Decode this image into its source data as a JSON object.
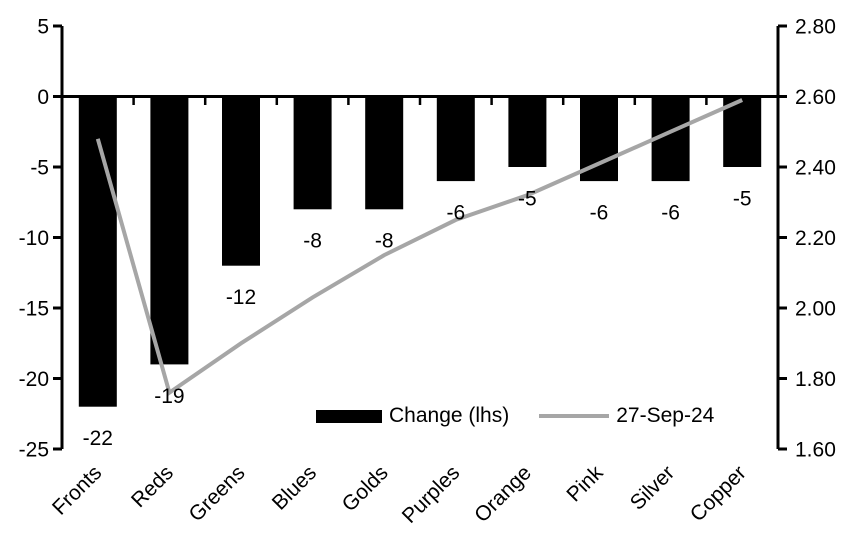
{
  "chart_data": {
    "type": "combo",
    "title": "",
    "xlabel": "",
    "ylabel": "",
    "grid": false,
    "background": "#ffffff",
    "axis_color": "#000000",
    "text_color": "#000000",
    "categories": [
      "Fronts",
      "Reds",
      "Greens",
      "Blues",
      "Golds",
      "Purples",
      "Orange",
      "Pink",
      "Silver",
      "Copper"
    ],
    "series": [
      {
        "name": "Change (lhs)",
        "type": "bar",
        "axis": "left",
        "color": "#000000",
        "values": [
          -22,
          -19,
          -12,
          -8,
          -8,
          -6,
          -5,
          -6,
          -6,
          -5
        ],
        "data_labels": [
          "-22",
          "-19",
          "-12",
          "-8",
          "-8",
          "-6",
          "-5",
          "-6",
          "-6",
          "-5"
        ]
      },
      {
        "name": "27-Sep-24",
        "type": "line",
        "axis": "right",
        "color": "#a6a6a6",
        "values": [
          2.48,
          1.76,
          1.9,
          2.03,
          2.15,
          2.25,
          2.32,
          2.41,
          2.5,
          2.59
        ]
      }
    ],
    "left_axis": {
      "min": -25,
      "max": 5,
      "tick_values": [
        5,
        0,
        -5,
        -10,
        -15,
        -20,
        -25
      ],
      "tick_labels": [
        "5",
        "0",
        "-5",
        "-10",
        "-15",
        "-20",
        "-25"
      ]
    },
    "right_axis": {
      "min": 1.6,
      "max": 2.8,
      "tick_values": [
        2.8,
        2.6,
        2.4,
        2.2,
        2.0,
        1.8,
        1.6
      ],
      "tick_labels": [
        "2.80",
        "2.60",
        "2.40",
        "2.20",
        "2.00",
        "1.80",
        "1.60"
      ]
    },
    "legend_position": "bottom-inside"
  }
}
